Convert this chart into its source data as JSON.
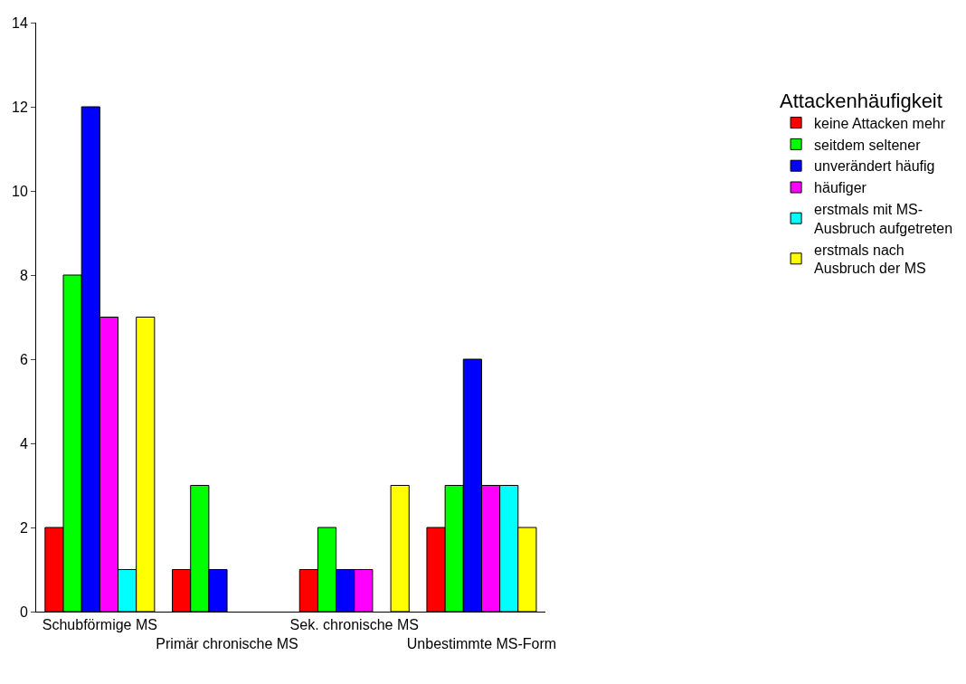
{
  "chart_data": {
    "type": "bar",
    "categories": [
      "Schubförmige MS",
      "Primär chronische MS",
      "Sek. chronische MS",
      "Unbestimmte MS-Form"
    ],
    "legend_title": "Attackenhäufigkeit",
    "series": [
      {
        "name": "keine Attacken mehr",
        "color": "#ff0000",
        "values": [
          2,
          1,
          1,
          2
        ]
      },
      {
        "name": "seitdem seltener",
        "color": "#00ff00",
        "values": [
          8,
          3,
          2,
          3
        ]
      },
      {
        "name": "unverändert häufig",
        "color": "#0000ff",
        "values": [
          12,
          1,
          1,
          6
        ]
      },
      {
        "name": "häufiger",
        "color": "#ff00ff",
        "values": [
          7,
          null,
          1,
          3
        ]
      },
      {
        "name": "erstmals mit MS-Ausbruch aufgetreten",
        "color": "#00ffff",
        "values": [
          1,
          null,
          null,
          3
        ]
      },
      {
        "name": "erstmals nach Ausbruch der MS",
        "color": "#ffff00",
        "values": [
          7,
          null,
          3,
          2
        ]
      }
    ],
    "ylim": [
      0,
      14
    ],
    "yticks": [
      0,
      2,
      4,
      6,
      8,
      10,
      12,
      14
    ],
    "legend": "right"
  }
}
